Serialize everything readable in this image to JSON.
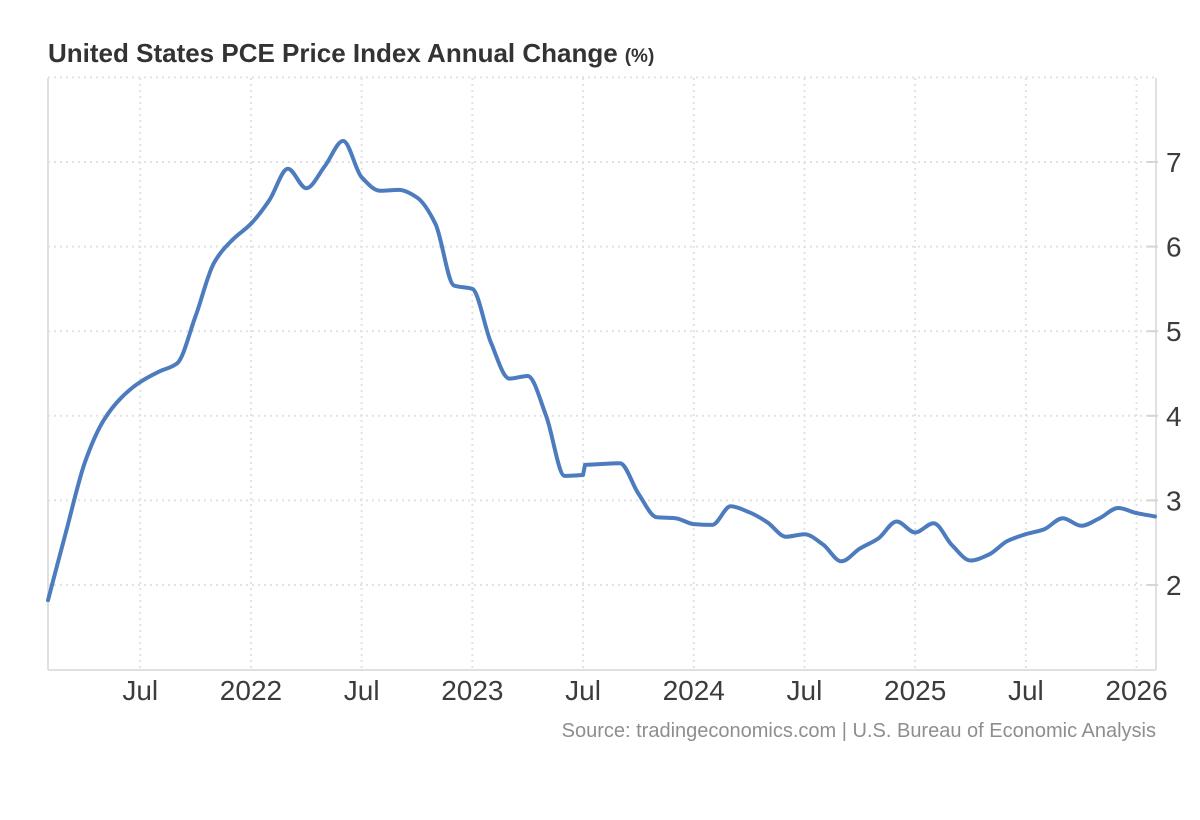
{
  "chart_data": {
    "type": "line",
    "title": "United States PCE Price Index Annual Change",
    "unit_suffix": "(%)",
    "series_name": "PCE Price Index Annual Change (%)",
    "frequency": "monthly",
    "start_month": "2021-02",
    "end_month": "2026-02",
    "values": [
      1.82,
      2.65,
      3.45,
      3.94,
      4.22,
      4.4,
      4.52,
      4.62,
      5.18,
      5.81,
      6.08,
      6.27,
      6.55,
      6.92,
      6.69,
      6.95,
      7.25,
      6.82,
      6.66,
      6.67,
      6.58,
      6.27,
      5.54,
      5.5,
      4.87,
      4.44,
      4.47,
      4.0,
      3.29,
      3.3,
      3.43,
      3.44,
      3.08,
      2.8,
      2.79,
      2.72,
      2.71,
      2.93,
      2.86,
      2.74,
      2.57,
      2.6,
      2.48,
      2.28,
      2.43,
      2.55,
      2.75,
      2.62,
      2.73,
      2.47,
      2.29,
      2.36,
      2.52,
      2.6,
      2.66,
      2.79,
      2.7,
      2.79,
      2.91,
      2.85,
      2.81
    ],
    "discontinuity": {
      "index": 29,
      "from": 3.3,
      "to": 3.42
    },
    "x_ticks": [
      {
        "label": "Jul",
        "month_index": 5
      },
      {
        "label": "2022",
        "month_index": 11
      },
      {
        "label": "Jul",
        "month_index": 17
      },
      {
        "label": "2023",
        "month_index": 23
      },
      {
        "label": "Jul",
        "month_index": 29
      },
      {
        "label": "2024",
        "month_index": 35
      },
      {
        "label": "Jul",
        "month_index": 41
      },
      {
        "label": "2025",
        "month_index": 47
      },
      {
        "label": "Jul",
        "month_index": 53
      },
      {
        "label": "2026",
        "month_index": 59
      }
    ],
    "y_ticks": [
      2,
      3,
      4,
      5,
      6,
      7
    ],
    "ylim": [
      1,
      8
    ],
    "legend": "none",
    "grid": "dotted",
    "line_color": "#4d7cbe"
  },
  "source_text": "Source: tradingeconomics.com | U.S. Bureau of Economic Analysis",
  "colors": {
    "background": "#ffffff",
    "grid": "#e2e2e2",
    "axis": "#e0e0e0",
    "tick": "#d6d6d6",
    "title_text": "#333333",
    "axis_text": "#3c3c3c",
    "source_text": "#8e8e8e"
  }
}
